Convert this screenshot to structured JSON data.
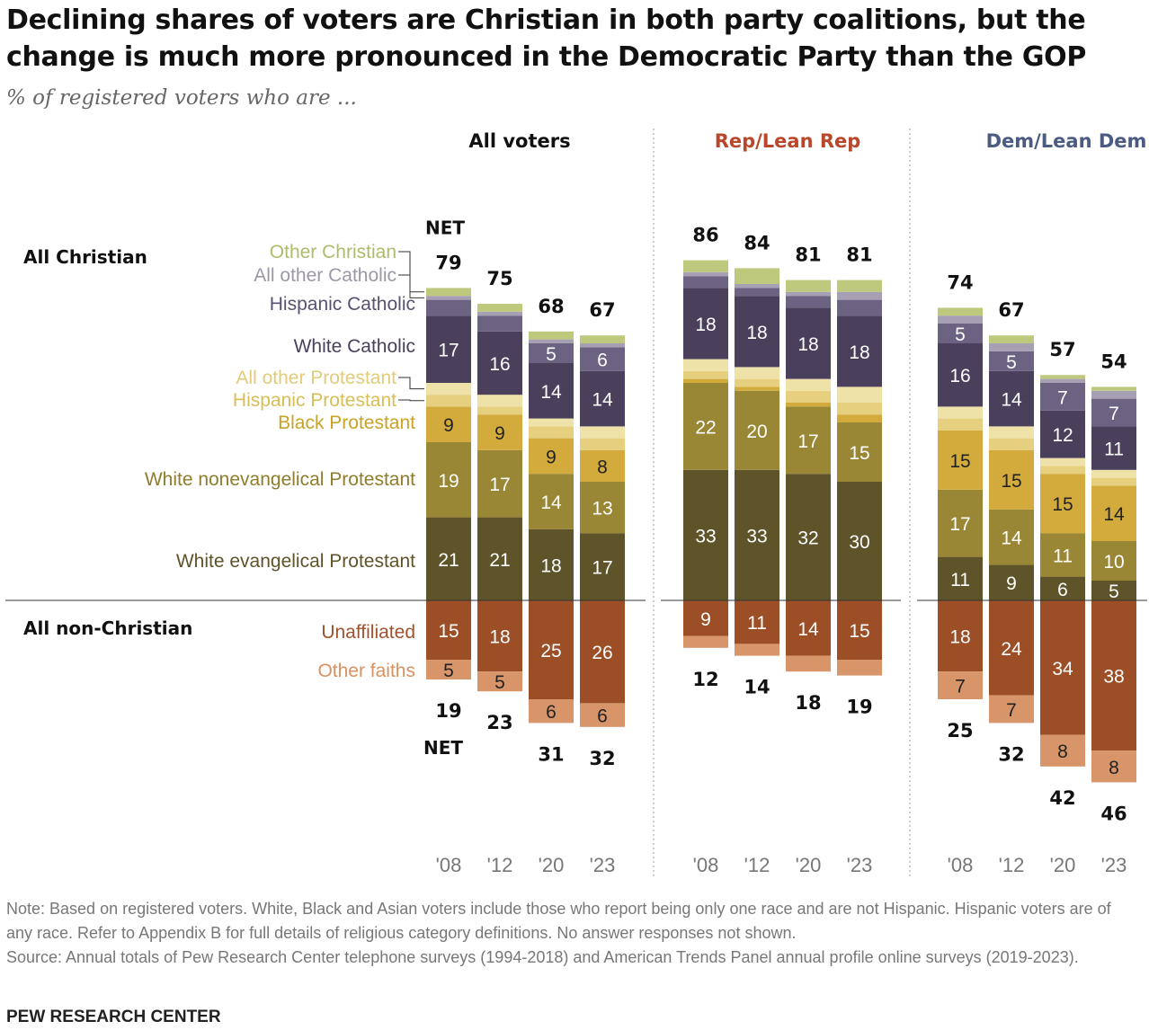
{
  "title": "Declining shares of voters are Christian in both party coalitions, but the change is much more pronounced in the Democratic Party than the GOP",
  "subtitle": "% of registered voters who are ...",
  "note": "Note: Based on registered voters. White, Black and Asian voters include those who report being only one race and are not Hispanic. Hispanic voters are of any race. Refer to Appendix B for full details of religious category definitions. No answer responses not shown.",
  "source": "Source: Annual totals of Pew Research Center telephone surveys (1994-2018) and American Trends Panel annual profile online surveys (2019-2023).",
  "footer": "PEW RESEARCH CENTER",
  "chart_data": {
    "type": "bar",
    "stacked": true,
    "years": [
      "'08",
      "'12",
      "'20",
      "'23"
    ],
    "group_labels": {
      "christian": "All Christian",
      "non_christian": "All non-Christian",
      "net": "NET"
    },
    "series": [
      {
        "name": "White evangelical Protestant",
        "color": "#5f5329",
        "text_color": "#ffffff",
        "group": "christian"
      },
      {
        "name": "White nonevangelical Protestant",
        "color": "#9a8735",
        "text_color": "#ffffff",
        "group": "christian"
      },
      {
        "name": "Black Protestant",
        "color": "#d3ab3c",
        "text_color": "#222222",
        "group": "christian"
      },
      {
        "name": "Hispanic Protestant",
        "color": "#e6d07f",
        "text_color": "#222222",
        "group": "christian"
      },
      {
        "name": "All other Protestant",
        "color": "#efe2a8",
        "text_color": "#222222",
        "group": "christian"
      },
      {
        "name": "White Catholic",
        "color": "#4a405c",
        "text_color": "#ffffff",
        "group": "christian"
      },
      {
        "name": "Hispanic Catholic",
        "color": "#6c6383",
        "text_color": "#ffffff",
        "group": "christian"
      },
      {
        "name": "All other Catholic",
        "color": "#a79fb3",
        "text_color": "#ffffff",
        "group": "christian"
      },
      {
        "name": "Other Christian",
        "color": "#bfc97e",
        "text_color": "#222222",
        "group": "christian"
      },
      {
        "name": "Unaffiliated",
        "color": "#9c4f27",
        "text_color": "#ffffff",
        "group": "non_christian"
      },
      {
        "name": "Other faiths",
        "color": "#d9956a",
        "text_color": "#222222",
        "group": "non_christian"
      }
    ],
    "label_colors": [
      "#5f5329",
      "#8f7d2c",
      "#c9a227",
      "#d9bd55",
      "#e2cc7a",
      "#4a405c",
      "#5a5170",
      "#9d97a8",
      "#adbc6a",
      "#a0522d",
      "#d9925f"
    ],
    "panels": [
      {
        "title": "All voters",
        "title_color": "#111111",
        "net_christian": [
          79,
          75,
          68,
          67
        ],
        "net_non_christian": [
          19,
          23,
          31,
          32
        ],
        "values": [
          [
            21,
            21,
            18,
            17
          ],
          [
            19,
            17,
            14,
            13
          ],
          [
            9,
            9,
            9,
            8
          ],
          [
            3,
            2,
            3,
            3
          ],
          [
            3,
            3,
            2,
            3
          ],
          [
            17,
            16,
            14,
            14
          ],
          [
            4,
            4,
            5,
            6
          ],
          [
            1,
            1,
            1,
            1
          ],
          [
            2,
            2,
            2,
            2
          ],
          [
            15,
            18,
            25,
            26
          ],
          [
            5,
            5,
            6,
            6
          ]
        ],
        "printed": [
          [
            21,
            21,
            18,
            17
          ],
          [
            19,
            17,
            14,
            13
          ],
          [
            9,
            9,
            9,
            8
          ],
          [
            null,
            null,
            null,
            null
          ],
          [
            null,
            null,
            null,
            null
          ],
          [
            17,
            16,
            14,
            14
          ],
          [
            null,
            null,
            5,
            6
          ],
          [
            null,
            null,
            null,
            null
          ],
          [
            null,
            null,
            null,
            null
          ],
          [
            15,
            18,
            25,
            26
          ],
          [
            5,
            5,
            6,
            6
          ]
        ]
      },
      {
        "title": "Rep/Lean Rep",
        "title_color": "#b8472b",
        "net_christian": [
          86,
          84,
          81,
          81
        ],
        "net_non_christian": [
          12,
          14,
          18,
          19
        ],
        "values": [
          [
            33,
            33,
            32,
            30
          ],
          [
            22,
            20,
            17,
            15
          ],
          [
            1,
            1,
            1,
            2
          ],
          [
            2,
            2,
            3,
            3
          ],
          [
            3,
            3,
            3,
            4
          ],
          [
            18,
            18,
            18,
            18
          ],
          [
            3,
            2,
            3,
            4
          ],
          [
            1,
            1,
            1,
            2
          ],
          [
            3,
            4,
            3,
            3
          ],
          [
            9,
            11,
            14,
            15
          ],
          [
            3,
            3,
            4,
            4
          ]
        ],
        "printed": [
          [
            33,
            33,
            32,
            30
          ],
          [
            22,
            20,
            17,
            15
          ],
          [
            null,
            null,
            null,
            null
          ],
          [
            null,
            null,
            null,
            null
          ],
          [
            null,
            null,
            null,
            null
          ],
          [
            18,
            18,
            18,
            18
          ],
          [
            null,
            null,
            null,
            null
          ],
          [
            null,
            null,
            null,
            null
          ],
          [
            null,
            null,
            null,
            null
          ],
          [
            9,
            11,
            14,
            15
          ],
          [
            null,
            null,
            null,
            null
          ]
        ]
      },
      {
        "title": "Dem/Lean Dem",
        "title_color": "#4b5b82",
        "net_christian": [
          74,
          67,
          57,
          54
        ],
        "net_non_christian": [
          25,
          32,
          42,
          46
        ],
        "values": [
          [
            11,
            9,
            6,
            5
          ],
          [
            17,
            14,
            11,
            10
          ],
          [
            15,
            15,
            15,
            14
          ],
          [
            3,
            3,
            2,
            2
          ],
          [
            3,
            3,
            2,
            2
          ],
          [
            16,
            14,
            12,
            11
          ],
          [
            5,
            5,
            7,
            7
          ],
          [
            2,
            2,
            1,
            2
          ],
          [
            2,
            2,
            1,
            1
          ],
          [
            18,
            24,
            34,
            38
          ],
          [
            7,
            7,
            8,
            8
          ]
        ],
        "printed": [
          [
            11,
            9,
            6,
            5
          ],
          [
            17,
            14,
            11,
            10
          ],
          [
            15,
            15,
            15,
            14
          ],
          [
            null,
            null,
            null,
            null
          ],
          [
            null,
            null,
            null,
            null
          ],
          [
            16,
            14,
            12,
            11
          ],
          [
            5,
            5,
            7,
            7
          ],
          [
            null,
            null,
            null,
            null
          ],
          [
            null,
            null,
            null,
            null
          ],
          [
            18,
            24,
            34,
            38
          ],
          [
            7,
            7,
            8,
            8
          ]
        ]
      }
    ]
  }
}
